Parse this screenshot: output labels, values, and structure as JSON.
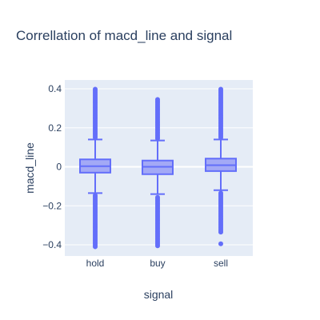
{
  "chart_data": {
    "type": "box",
    "title": "Correllation of macd_line and signal",
    "xlabel": "signal",
    "ylabel": "macd_line",
    "categories": [
      "hold",
      "buy",
      "sell"
    ],
    "ylim": [
      -0.42,
      0.42
    ],
    "yticks": [
      0.4,
      0.2,
      0,
      -0.2,
      -0.4
    ],
    "ytick_labels": [
      "0.4",
      "0.2",
      "0",
      "−0.2",
      "−0.4"
    ],
    "grid": true,
    "colors": {
      "plot_bg": "#e5ecf6",
      "box_line": "#636efa",
      "box_fill": "#a3a9f6",
      "text": "#2a3f5f",
      "grid": "#ffffff"
    },
    "boxes": [
      {
        "category": "hold",
        "q1": -0.03,
        "median": 0.003,
        "q3": 0.038,
        "lower_fence": -0.135,
        "upper_fence": 0.14,
        "outliers_upper_range": [
          0.15,
          0.4
        ],
        "outliers_lower_range": [
          -0.41,
          -0.145
        ]
      },
      {
        "category": "buy",
        "q1": -0.038,
        "median": 0.0,
        "q3": 0.032,
        "lower_fence": -0.14,
        "upper_fence": 0.135,
        "outliers_upper_range": [
          0.145,
          0.345
        ],
        "outliers_lower_range": [
          -0.405,
          -0.15
        ]
      },
      {
        "category": "sell",
        "q1": -0.022,
        "median": 0.008,
        "q3": 0.042,
        "lower_fence": -0.12,
        "upper_fence": 0.14,
        "outliers_upper_range": [
          0.15,
          0.4
        ],
        "outliers_lower_range": [
          -0.335,
          -0.13
        ],
        "extra_outliers": [
          -0.395
        ]
      }
    ]
  }
}
